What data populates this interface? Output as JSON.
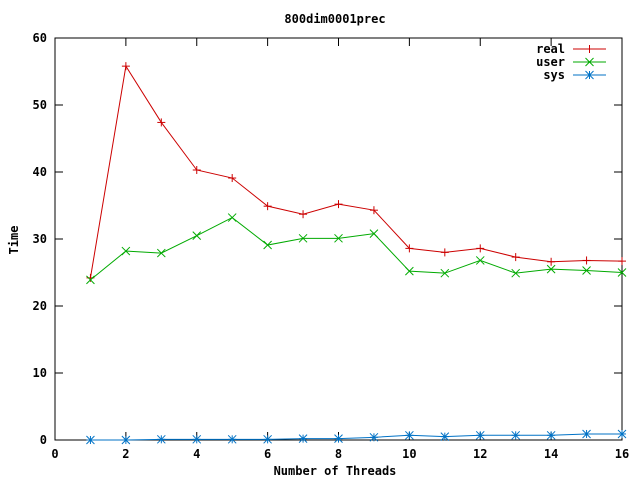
{
  "chart_data": {
    "type": "line",
    "title": "800dim0001prec",
    "xlabel": "Number of Threads",
    "ylabel": "Time",
    "xlim": [
      0,
      16
    ],
    "ylim": [
      0,
      60
    ],
    "xticks": [
      0,
      2,
      4,
      6,
      8,
      10,
      12,
      14,
      16
    ],
    "yticks": [
      0,
      10,
      20,
      30,
      40,
      50,
      60
    ],
    "grid": false,
    "legend": "top-right",
    "x": [
      1,
      2,
      3,
      4,
      5,
      6,
      7,
      8,
      9,
      10,
      11,
      12,
      13,
      14,
      15,
      16
    ],
    "series": [
      {
        "name": "real",
        "color": "#cc0000",
        "marker": "plus",
        "values": [
          24.2,
          55.8,
          47.4,
          40.3,
          39.1,
          34.9,
          33.7,
          35.2,
          34.3,
          28.6,
          28.0,
          28.6,
          27.3,
          26.6,
          26.8,
          26.7
        ]
      },
      {
        "name": "user",
        "color": "#00aa00",
        "marker": "x",
        "values": [
          23.9,
          28.2,
          27.9,
          30.5,
          33.2,
          29.1,
          30.1,
          30.1,
          30.8,
          25.2,
          24.9,
          26.8,
          24.9,
          25.5,
          25.3,
          25.0
        ]
      },
      {
        "name": "sys",
        "color": "#0072c6",
        "marker": "star",
        "values": [
          0.0,
          0.0,
          0.1,
          0.1,
          0.1,
          0.1,
          0.2,
          0.2,
          0.4,
          0.7,
          0.5,
          0.7,
          0.7,
          0.7,
          0.9,
          0.9
        ]
      }
    ]
  }
}
